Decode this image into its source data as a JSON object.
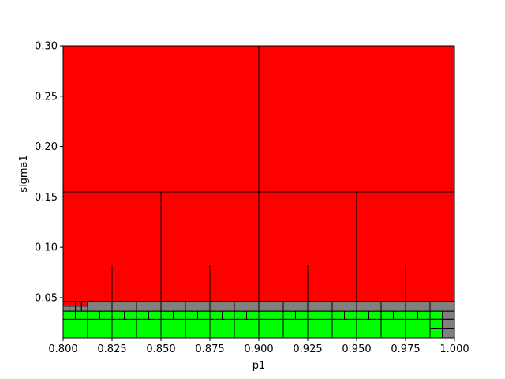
{
  "chart_data": {
    "type": "heatmap",
    "title": "",
    "xlabel": "p1",
    "ylabel": "sigma1",
    "xlim": [
      0.8,
      1.0
    ],
    "ylim": [
      0.01,
      0.3
    ],
    "x_ticks": [
      0.8,
      0.825,
      0.85,
      0.875,
      0.9,
      0.925,
      0.95,
      0.975,
      1.0
    ],
    "x_tick_labels": [
      "0.800",
      "0.825",
      "0.850",
      "0.875",
      "0.900",
      "0.925",
      "0.950",
      "0.975",
      "1.000"
    ],
    "y_ticks": [
      0.05,
      0.1,
      0.15,
      0.2,
      0.25,
      0.3
    ],
    "y_tick_labels": [
      "0.05",
      "0.10",
      "0.15",
      "0.20",
      "0.25",
      "0.30"
    ],
    "colors": {
      "red": "#ff0000",
      "gray": "#808080",
      "green": "#00ff00"
    },
    "rows": [
      {
        "y0": 0.155,
        "y1": 0.3,
        "state": "red",
        "x_edges": [
          0.8,
          0.9,
          1.0
        ]
      },
      {
        "y0": 0.0825,
        "y1": 0.155,
        "state": "red",
        "x_edges": [
          0.8,
          0.85,
          0.9,
          0.95,
          1.0
        ]
      },
      {
        "y0": 0.04625,
        "y1": 0.0825,
        "state": "red",
        "x_edges": [
          0.8,
          0.825,
          0.85,
          0.875,
          0.9,
          0.925,
          0.95,
          0.975,
          1.0
        ]
      },
      {
        "y0": 0.04625,
        "y1": 0.0415,
        "state": "gray",
        "note": "mixed"
      }
    ],
    "cells": [
      {
        "x0": 0.8,
        "x1": 0.8125,
        "y0": 0.0415,
        "y1": 0.04625,
        "state": "gray"
      }
    ]
  }
}
